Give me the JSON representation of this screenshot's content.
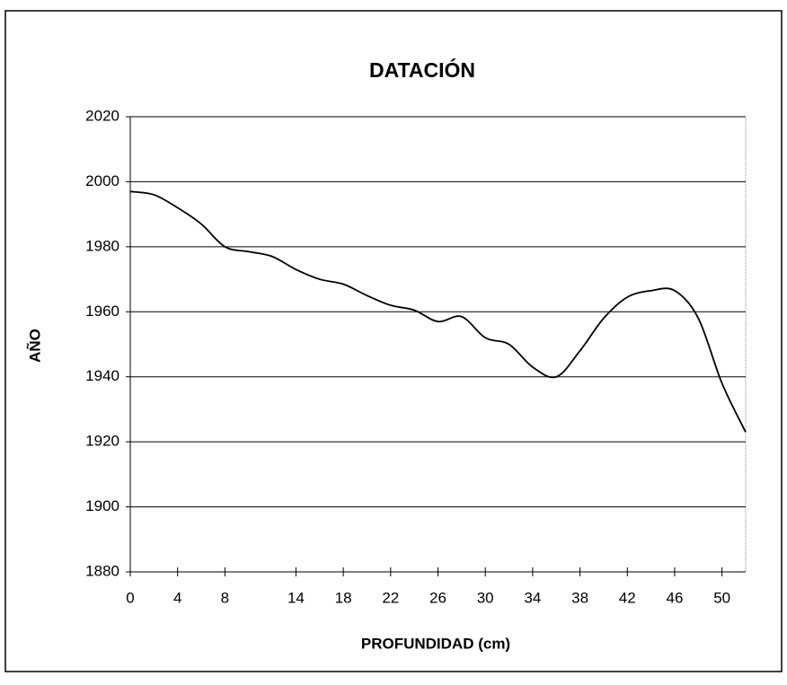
{
  "chart_data": {
    "type": "line",
    "title": "DATACIÓN",
    "x_label": "PROFUNDIDAD (cm)",
    "y_label": "AÑO",
    "x": [
      0,
      2,
      4,
      6,
      8,
      10,
      12,
      14,
      16,
      18,
      20,
      22,
      24,
      26,
      28,
      30,
      32,
      34,
      36,
      38,
      40,
      42,
      44,
      46,
      48,
      50,
      52
    ],
    "series": [
      {
        "name": "Año",
        "color": "#000000",
        "values": [
          1997,
          1996,
          1992,
          1987,
          1980,
          1978.5,
          1977,
          1973,
          1970,
          1968.5,
          1965,
          1962,
          1960.5,
          1957,
          1958.5,
          1952,
          1950,
          1943,
          1940,
          1948,
          1958,
          1964.5,
          1966.5,
          1966.5,
          1958,
          1938,
          1923
        ]
      }
    ],
    "xlim": [
      0,
      52
    ],
    "xticks": [
      0,
      4,
      8,
      14,
      18,
      22,
      26,
      30,
      34,
      38,
      42,
      46,
      50
    ],
    "ylim": [
      1880,
      2020
    ],
    "yticks": [
      1880,
      1900,
      1920,
      1940,
      1960,
      1980,
      2000,
      2020
    ],
    "grid": true
  }
}
